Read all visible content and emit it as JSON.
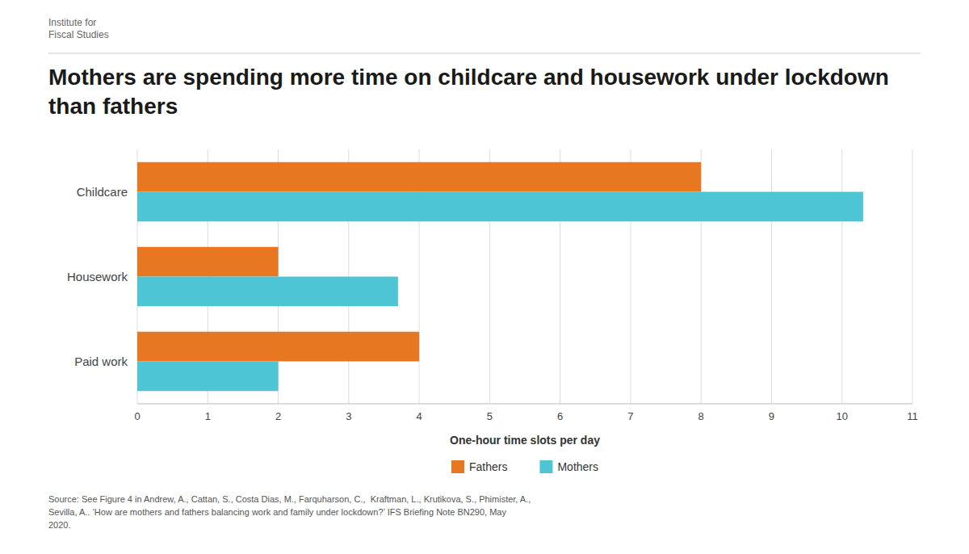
{
  "chart_data": {
    "type": "bar",
    "orientation": "horizontal",
    "title": "Mothers are spending more time on childcare and housework under lockdown than fathers",
    "categories": [
      "Childcare",
      "Housework",
      "Paid work"
    ],
    "series": [
      {
        "name": "Fathers",
        "color": "#E87722",
        "values": [
          8.0,
          2.0,
          4.0
        ]
      },
      {
        "name": "Mothers",
        "color": "#4DC5D4",
        "values": [
          10.3,
          3.7,
          2.0
        ]
      }
    ],
    "xlabel": "One-hour time slots per day",
    "xlim": [
      0,
      11
    ],
    "xticks": [
      0,
      1,
      2,
      3,
      4,
      5,
      6,
      7,
      8,
      9,
      10,
      11
    ],
    "grid": true,
    "legend": "bottom",
    "annotations": [
      "Institute for\nFiscal Studies",
      "Source: See Figure 4 in Andrew, A., Cattan, S., Costa Dias, M., Farquharson, C.,  Kraftman, L., Krutikova, S., Phimister, A.,\nSevilla, A.. ‘How are mothers and fathers balancing work and family under lockdown?’ IFS Briefing Note BN290, May\n2020."
    ]
  }
}
